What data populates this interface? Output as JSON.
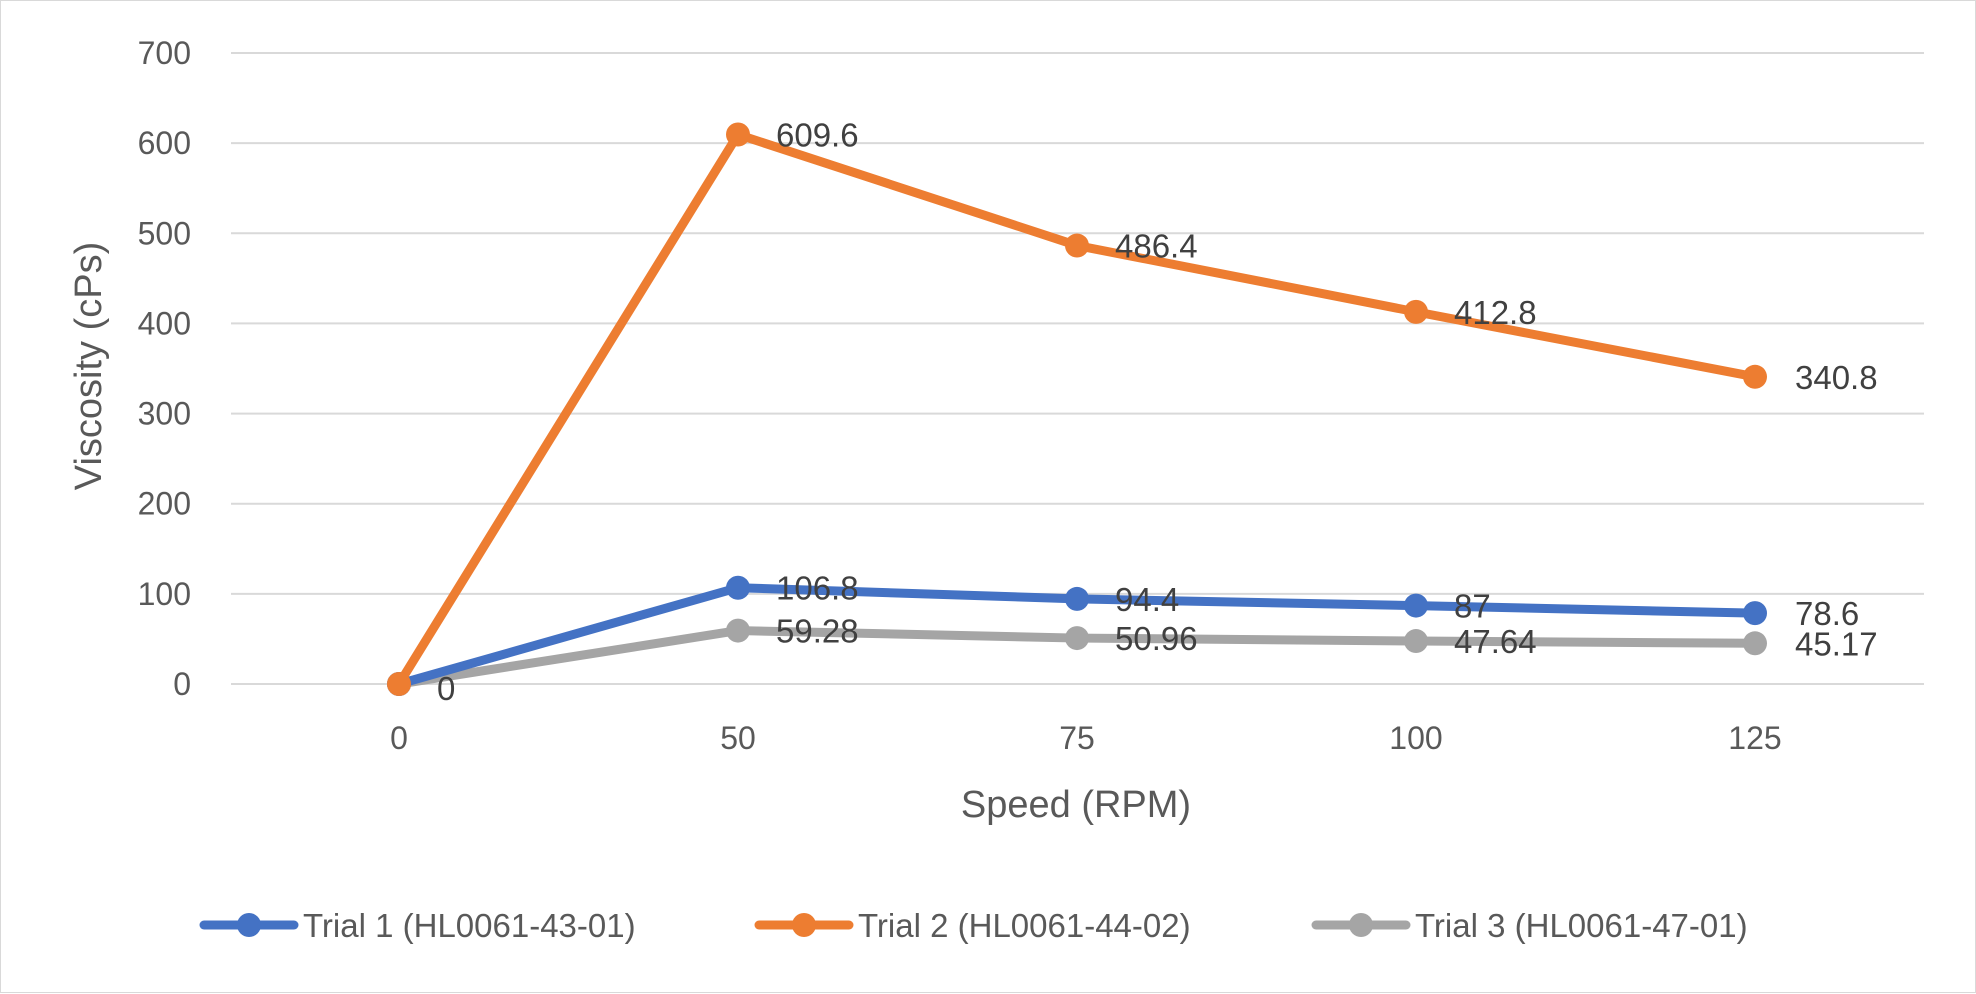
{
  "chart_data": {
    "type": "line",
    "title": "",
    "xlabel": "Speed (RPM)",
    "ylabel": "Viscosity (cPs)",
    "categories": [
      "0",
      "50",
      "75",
      "100",
      "125"
    ],
    "ylim": [
      0,
      700
    ],
    "yticks": [
      0,
      100,
      200,
      300,
      400,
      500,
      600,
      700
    ],
    "grid": true,
    "legend_position": "bottom",
    "data_labels": true,
    "series": [
      {
        "name": "Trial 1 (HL0061-43-01)",
        "color": "#4472c4",
        "values": [
          0,
          106.8,
          94.4,
          87,
          78.6
        ],
        "labels": [
          "0",
          "106.8",
          "94.4",
          "87",
          "78.6"
        ]
      },
      {
        "name": "Trial 2 (HL0061-44-02)",
        "color": "#ed7d31",
        "values": [
          0,
          609.6,
          486.4,
          412.8,
          340.8
        ],
        "labels": [
          "0",
          "609.6",
          "486.4",
          "412.8",
          "340.8"
        ]
      },
      {
        "name": "Trial 3 (HL0061-47-01)",
        "color": "#a5a5a5",
        "values": [
          0,
          59.28,
          50.96,
          47.64,
          45.17
        ],
        "labels": [
          "0",
          "59.28",
          "50.96",
          "47.64",
          "45.17"
        ]
      }
    ]
  }
}
